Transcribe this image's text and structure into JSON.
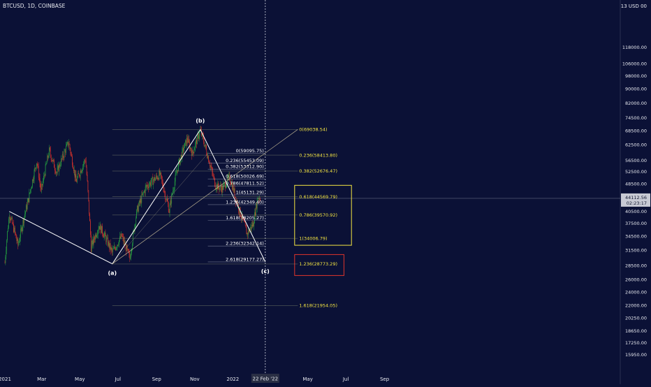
{
  "header": {
    "symbol": "BTCUSD, 1D, COINBASE",
    "currency": "13 USD 00"
  },
  "colors": {
    "background": "#0b1136",
    "candle_up": "#26a641",
    "candle_down": "#e0352b",
    "fib_white": "#ffffff",
    "fib_yellow": "#f5e642",
    "box_yellow": "#f5e642",
    "box_red": "#e0352b",
    "price_badge": "#c8cad4",
    "price_line": "#9aa0b4"
  },
  "chart_data": {
    "type": "candlestick",
    "y_scale": "log",
    "ylim": [
      14500,
      145000
    ],
    "y_ticks": [
      "118000.00",
      "106000.00",
      "98000.00",
      "90000.00",
      "82000.00",
      "74500.00",
      "68500.00",
      "62500.00",
      "56500.00",
      "52500.00",
      "48500.00",
      "44500.00",
      "40500.00",
      "37500.00",
      "34500.00",
      "31500.00",
      "28500.00",
      "26000.00",
      "24000.00",
      "22000.00",
      "20250.00",
      "18650.00",
      "17250.00",
      "15950.00"
    ],
    "x_ticks": [
      "2021",
      "Mar",
      "May",
      "Jul",
      "Sep",
      "Nov",
      "2022",
      "May",
      "Jul",
      "Sep"
    ],
    "x_tick_dates": [
      "2021-01-01",
      "2021-03-01",
      "2021-05-01",
      "2021-07-01",
      "2021-09-01",
      "2021-11-01",
      "2022-01-01",
      "2022-05-01",
      "2022-07-01",
      "2022-09-01"
    ],
    "crosshair_date_label": "22 Feb '22",
    "last_price": {
      "value": "44112.56",
      "countdown": "02:23:17"
    },
    "price_path": [
      [
        "2021-01-01",
        29000
      ],
      [
        "2021-01-08",
        40000
      ],
      [
        "2021-01-22",
        32500
      ],
      [
        "2021-02-08",
        44000
      ],
      [
        "2021-02-21",
        56000
      ],
      [
        "2021-02-28",
        46000
      ],
      [
        "2021-03-13",
        60000
      ],
      [
        "2021-03-25",
        52000
      ],
      [
        "2021-04-13",
        63500
      ],
      [
        "2021-04-25",
        49000
      ],
      [
        "2021-05-10",
        57000
      ],
      [
        "2021-05-19",
        32000
      ],
      [
        "2021-06-01",
        37000
      ],
      [
        "2021-06-22",
        31000
      ],
      [
        "2021-07-07",
        34500
      ],
      [
        "2021-07-20",
        29800
      ],
      [
        "2021-08-01",
        41000
      ],
      [
        "2021-08-15",
        47500
      ],
      [
        "2021-09-06",
        51500
      ],
      [
        "2021-09-21",
        40700
      ],
      [
        "2021-10-06",
        55000
      ],
      [
        "2021-10-20",
        65000
      ],
      [
        "2021-10-28",
        59000
      ],
      [
        "2021-11-10",
        68500
      ],
      [
        "2021-11-26",
        54500
      ],
      [
        "2021-12-04",
        48000
      ],
      [
        "2021-12-15",
        47000
      ],
      [
        "2021-12-27",
        50500
      ],
      [
        "2022-01-10",
        41500
      ],
      [
        "2022-01-24",
        35000
      ],
      [
        "2022-02-03",
        37500
      ],
      [
        "2022-02-10",
        44500
      ],
      [
        "2022-02-14",
        44100
      ]
    ],
    "zigzag": [
      {
        "date": "2021-01-08",
        "price": 40500
      },
      {
        "date": "2021-06-22",
        "price": 28800
      },
      {
        "date": "2021-11-10",
        "price": 69000
      },
      {
        "date": "2022-02-22",
        "price": 29177
      }
    ],
    "wave_labels": [
      {
        "text": "(a)",
        "date": "2021-06-22",
        "price": 28800
      },
      {
        "text": "(b)",
        "date": "2021-11-10",
        "price": 69000
      },
      {
        "text": "(c)",
        "date": "2022-02-22",
        "price": 29177
      }
    ],
    "fib_set_1": {
      "start_date": "2021-11-22",
      "end_date": "2022-02-22",
      "levels": [
        {
          "label": "0(59095.75)",
          "price": 59095.75
        },
        {
          "label": "0.236(55453.09)",
          "price": 55453.09
        },
        {
          "label": "0.382(53312.90)",
          "price": 53312.9
        },
        {
          "label": "0.618(50026.69)",
          "price": 50026.69
        },
        {
          "label": "0.786(47811.52)",
          "price": 47811.52
        },
        {
          "label": "1(45131.29)",
          "price": 45131.29
        },
        {
          "label": "1.236(42349.40)",
          "price": 42349.4
        },
        {
          "label": "1.618(38205.27)",
          "price": 38205.27
        },
        {
          "label": "2.236(32342.14)",
          "price": 32342.14
        },
        {
          "label": "2.618(29177.27)",
          "price": 29177.27
        }
      ]
    },
    "fib_set_2": {
      "start_date": "2021-06-22",
      "end_date": "2022-04-15",
      "levels": [
        {
          "label": "0(69038.54)",
          "price": 69038.54
        },
        {
          "label": "0.236(58413.80)",
          "price": 58413.8
        },
        {
          "label": "0.382(52676.47)",
          "price": 52676.47
        },
        {
          "label": "0.618(44569.79)",
          "price": 44569.79
        },
        {
          "label": "0.786(39570.92)",
          "price": 39570.92
        },
        {
          "label": "1(34006.79)",
          "price": 34006.79
        },
        {
          "label": "1.236(28773.29)",
          "price": 28773.29
        },
        {
          "label": "1.618(21954.05)",
          "price": 21954.05
        }
      ]
    },
    "trend_line": [
      {
        "date": "2021-06-22",
        "price": 28800
      },
      {
        "date": "2022-04-15",
        "price": 69038
      }
    ],
    "horizontal_line": {
      "price": 44112.56
    },
    "vertical_line": {
      "date": "2022-02-22"
    },
    "yellow_box": {
      "from_date": "2022-04-10",
      "to_date": "2022-07-10",
      "top": 48000,
      "bottom": 32500
    },
    "red_box": {
      "from_date": "2022-04-10",
      "to_date": "2022-06-28",
      "top": 30600,
      "bottom": 26700
    }
  }
}
